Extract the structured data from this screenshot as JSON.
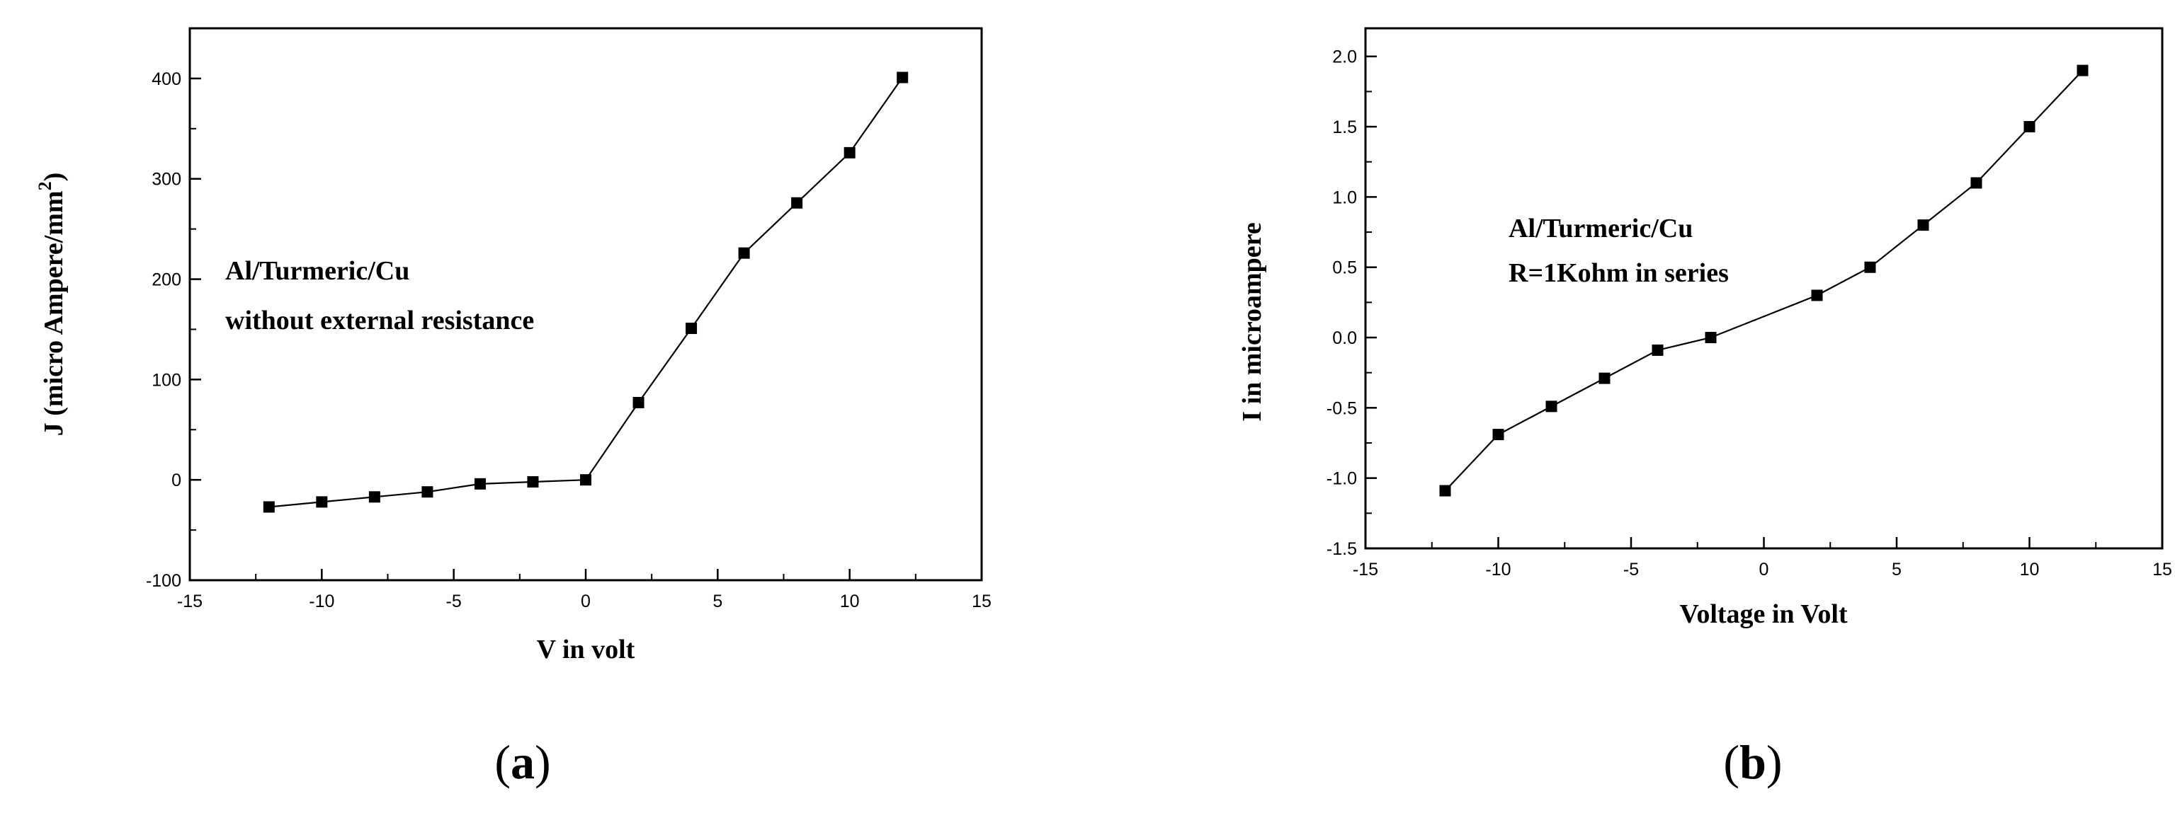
{
  "chart_data": [
    {
      "id": "a",
      "type": "line",
      "caption_letter": "a",
      "xlabel": "V in volt",
      "ylabel": "J (micro Ampere/mm",
      "ylabel_superscript": "2",
      "ylabel_close": ")",
      "annotation": [
        "Al/Turmeric/Cu",
        "without external resistance"
      ],
      "xlim": [
        -15,
        15
      ],
      "ylim": [
        -100,
        450
      ],
      "xticks": [
        -15,
        -10,
        -5,
        0,
        5,
        10,
        15
      ],
      "yticks": [
        -100,
        0,
        100,
        200,
        300,
        400
      ],
      "series": [
        {
          "x": [
            -12,
            -10,
            -8,
            -6,
            -4,
            -2,
            0,
            2,
            4,
            6,
            8,
            10,
            12
          ],
          "y": [
            -27,
            -22,
            -17,
            -12,
            -4,
            -2,
            0,
            77,
            151,
            226,
            276,
            326,
            401
          ]
        }
      ],
      "marker": "square",
      "grid": false
    },
    {
      "id": "b",
      "type": "line",
      "caption_letter": "b",
      "xlabel": "Voltage in Volt",
      "ylabel": "I in microampere",
      "annotation": [
        "Al/Turmeric/Cu",
        "R=1Kohm in series"
      ],
      "xlim": [
        -15,
        15
      ],
      "ylim": [
        -1.5,
        2.2
      ],
      "xticks": [
        -15,
        -10,
        -5,
        0,
        5,
        10,
        15
      ],
      "yticks": [
        -1.5,
        -1.0,
        -0.5,
        0.0,
        0.5,
        1.0,
        1.5,
        2.0
      ],
      "ytick_labels": [
        "-1.5",
        "-1.0",
        "-0.5",
        "0.0",
        "0.5",
        "1.0",
        "1.5",
        "2.0"
      ],
      "series": [
        {
          "x": [
            -12,
            -10,
            -8,
            -6,
            -4,
            -2,
            2,
            4,
            6,
            8,
            10,
            12
          ],
          "y": [
            -1.09,
            -0.69,
            -0.49,
            -0.29,
            -0.09,
            0.0,
            0.3,
            0.5,
            0.8,
            1.1,
            1.5,
            1.9
          ]
        }
      ],
      "marker": "square",
      "grid": false
    }
  ]
}
